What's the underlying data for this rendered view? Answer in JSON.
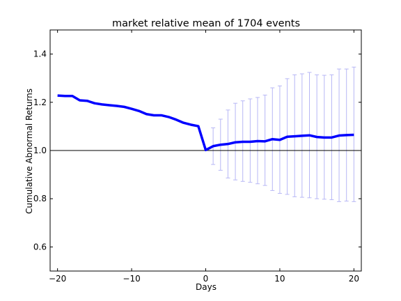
{
  "chart_data": {
    "type": "line",
    "title": "market relative mean of 1704 events",
    "xlabel": "Days",
    "ylabel": "Cumulative Abnormal Returns",
    "xlim": [
      -21,
      21
    ],
    "ylim": [
      0.5,
      1.5
    ],
    "xticks": [
      -20,
      -10,
      0,
      10,
      20
    ],
    "xtick_labels": [
      "−20",
      "−10",
      "0",
      "10",
      "20"
    ],
    "yticks": [
      0.6,
      0.8,
      1.0,
      1.2,
      1.4
    ],
    "ytick_labels": [
      "0.6",
      "0.8",
      "1.0",
      "1.2",
      "1.4"
    ],
    "grid": false,
    "legend": "none",
    "reference_line": {
      "y": 1.0,
      "color": "#000000"
    },
    "series": [
      {
        "color": "#0000ff",
        "x": [
          -20,
          -19,
          -18,
          -17,
          -16,
          -15,
          -14,
          -13,
          -12,
          -11,
          -10,
          -9,
          -8,
          -7,
          -6,
          -5,
          -4,
          -3,
          -2,
          -1,
          0,
          1,
          2,
          3,
          4,
          5,
          6,
          7,
          8,
          9,
          10,
          11,
          12,
          13,
          14,
          15,
          16,
          17,
          18,
          19,
          20
        ],
        "y": [
          1.228,
          1.226,
          1.226,
          1.208,
          1.206,
          1.196,
          1.191,
          1.188,
          1.185,
          1.181,
          1.173,
          1.164,
          1.151,
          1.146,
          1.146,
          1.139,
          1.128,
          1.115,
          1.107,
          1.101,
          1.002,
          1.018,
          1.024,
          1.027,
          1.034,
          1.036,
          1.036,
          1.039,
          1.038,
          1.047,
          1.044,
          1.057,
          1.059,
          1.061,
          1.063,
          1.056,
          1.054,
          1.054,
          1.062,
          1.064,
          1.065
        ]
      }
    ],
    "error_bars": {
      "color": "#b7b7f5",
      "x": [
        1,
        2,
        3,
        4,
        5,
        6,
        7,
        8,
        9,
        10,
        11,
        12,
        13,
        14,
        15,
        16,
        17,
        18,
        19,
        20
      ],
      "lower": [
        0.942,
        0.918,
        0.886,
        0.878,
        0.872,
        0.868,
        0.862,
        0.855,
        0.834,
        0.822,
        0.818,
        0.808,
        0.806,
        0.804,
        0.8,
        0.798,
        0.796,
        0.788,
        0.79,
        0.788
      ],
      "upper": [
        1.094,
        1.13,
        1.168,
        1.196,
        1.206,
        1.214,
        1.22,
        1.23,
        1.26,
        1.268,
        1.298,
        1.314,
        1.318,
        1.324,
        1.314,
        1.312,
        1.314,
        1.338,
        1.338,
        1.346
      ]
    }
  }
}
